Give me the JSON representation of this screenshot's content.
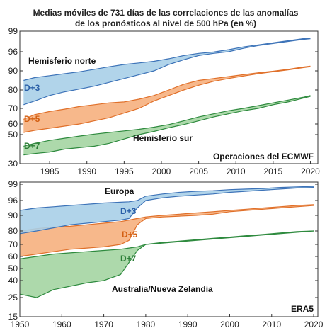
{
  "chart_data": [
    {
      "type": "area",
      "title_line1": "Medias móviles de 731 días de las correlaciones de las anomalías",
      "title_line2": "de los pronósticos al nivel de 500 hPa (en %)",
      "y_scale": "nonlinear",
      "ylim": [
        30,
        99
      ],
      "xlim": [
        1981,
        2021
      ],
      "yticks": [
        30,
        50,
        60,
        70,
        80,
        90,
        96,
        99
      ],
      "xticks": [
        1985,
        1990,
        1995,
        2000,
        2005,
        2010,
        2015,
        2020
      ],
      "corner_label": "Operaciones del ECMWF",
      "region_labels": [
        "Hemisferio norte",
        "Hemisferio sur"
      ],
      "lead_labels": [
        "D+3",
        "D+5",
        "D+7"
      ],
      "colors": {
        "D+3": "#a9cfe8",
        "D+5": "#f6b07e",
        "D+7": "#a4d5a2",
        "D+3_line": "#3d73b8",
        "D+5_line": "#e0702a",
        "D+7_line": "#2e8a3e"
      },
      "x": [
        1981.5,
        1983,
        1985,
        1987,
        1989,
        1991,
        1993,
        1995,
        1997,
        1999,
        2001,
        2003,
        2005,
        2007,
        2009,
        2011,
        2013,
        2015,
        2017,
        2019,
        2020
      ],
      "series": [
        {
          "lead": "D+3",
          "hemisphere": "north",
          "values": [
            85,
            86.5,
            87.5,
            88.5,
            89.5,
            90.5,
            91.3,
            92,
            92.5,
            93,
            93.8,
            94.8,
            95.5,
            95.9,
            96.3,
            96.7,
            97,
            97.3,
            97.6,
            97.9,
            98
          ]
        },
        {
          "lead": "D+3",
          "hemisphere": "south",
          "values": [
            72,
            74,
            77,
            79,
            80.5,
            82,
            84,
            86,
            88,
            90,
            92,
            93.5,
            94.8,
            95.5,
            96,
            96.5,
            96.9,
            97.2,
            97.5,
            97.8,
            97.9
          ]
        },
        {
          "lead": "D+5",
          "hemisphere": "north",
          "values": [
            63,
            66,
            68,
            69.5,
            71,
            72,
            73,
            73.5,
            75,
            77,
            80,
            83,
            85,
            86,
            87,
            88,
            89,
            89.8,
            90.5,
            91.2,
            91.5
          ]
        },
        {
          "lead": "D+5",
          "hemisphere": "south",
          "values": [
            52,
            54,
            56,
            58,
            60,
            62,
            64,
            67,
            70,
            74,
            77,
            80,
            82.5,
            84.5,
            86,
            87.3,
            88.5,
            89.5,
            90.3,
            91,
            91.3
          ]
        },
        {
          "lead": "D+7",
          "hemisphere": "north",
          "values": [
            42,
            44,
            46,
            47.5,
            49,
            50.5,
            52,
            53.5,
            55,
            57,
            59.5,
            62,
            64.5,
            66.5,
            68.5,
            70,
            71.5,
            73,
            74.5,
            76,
            77
          ]
        },
        {
          "lead": "D+7",
          "hemisphere": "south",
          "values": [
            36,
            37,
            38,
            40,
            41,
            42,
            44,
            47,
            50,
            53,
            56.5,
            59.5,
            62,
            64.5,
            66.5,
            68.5,
            70,
            72,
            73.5,
            75.5,
            76.5
          ]
        }
      ]
    },
    {
      "type": "area",
      "y_scale": "nonlinear",
      "ylim": [
        15,
        99
      ],
      "xlim": [
        1950,
        2021
      ],
      "yticks": [
        15,
        25,
        40,
        50,
        60,
        70,
        80,
        90,
        96,
        99
      ],
      "xticks": [
        1950,
        1960,
        1970,
        1980,
        1990,
        2000,
        2010,
        2020
      ],
      "corner_label": "ERA5",
      "region_labels": [
        "Europa",
        "Australia/Nueva Zelandia"
      ],
      "lead_labels": [
        "D+3",
        "D+5",
        "D+7"
      ],
      "x": [
        1950,
        1954,
        1958,
        1962,
        1966,
        1970,
        1974,
        1976,
        1978,
        1980,
        1984,
        1988,
        1992,
        1996,
        2000,
        2004,
        2008,
        2012,
        2016,
        2020
      ],
      "series": [
        {
          "lead": "D+3",
          "region": "europe",
          "values": [
            92,
            93,
            93.5,
            94,
            94.5,
            95,
            95.3,
            95.5,
            96,
            96.8,
            97.2,
            97.5,
            97.7,
            97.8,
            98,
            98.1,
            98.2,
            98.4,
            98.5,
            98.6
          ]
        },
        {
          "lead": "D+3",
          "region": "australia",
          "values": [
            78,
            80,
            82,
            84,
            85,
            86,
            87,
            88,
            93,
            96,
            96.5,
            96.8,
            97,
            97.2,
            97.5,
            97.7,
            97.9,
            98.1,
            98.3,
            98.4
          ]
        },
        {
          "lead": "D+5",
          "region": "europe",
          "values": [
            80,
            81.5,
            82.5,
            83,
            84,
            85,
            86,
            87,
            88,
            89,
            90,
            90.5,
            91,
            91.5,
            92,
            92.5,
            93,
            93.5,
            94,
            94.3
          ]
        },
        {
          "lead": "D+5",
          "region": "australia",
          "values": [
            60,
            62,
            64,
            66,
            67,
            68,
            70,
            73,
            84,
            88,
            89,
            89.5,
            90,
            90.5,
            91.5,
            92,
            92.5,
            93,
            93.5,
            94
          ]
        },
        {
          "lead": "D+7",
          "region": "europe",
          "values": [
            58,
            60,
            62,
            63,
            64,
            65,
            66,
            67,
            68,
            70,
            71.5,
            72.5,
            73.5,
            74.5,
            75.5,
            76.5,
            77.5,
            78.5,
            79.5,
            80
          ]
        },
        {
          "lead": "D+7",
          "region": "australia",
          "values": [
            28,
            25,
            32,
            35,
            38,
            40,
            45,
            55,
            65,
            70,
            71,
            72,
            73,
            74,
            75,
            76,
            77,
            78,
            79,
            80
          ]
        }
      ]
    }
  ]
}
